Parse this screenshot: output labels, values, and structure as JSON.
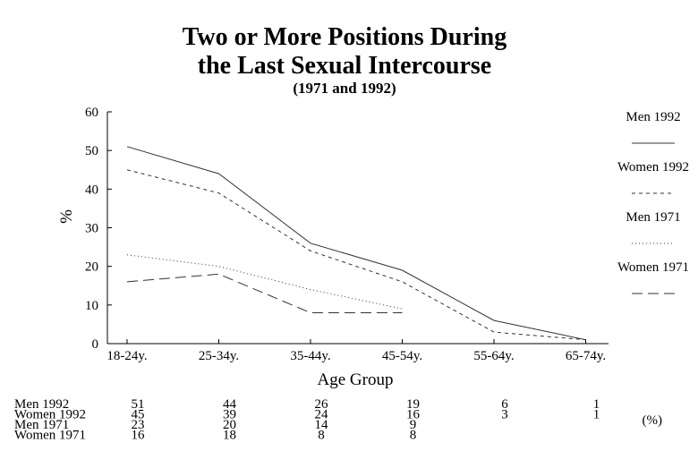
{
  "chart_data": {
    "type": "line",
    "title": "Two or More Positions During the Last Sexual Intercourse",
    "title_lines": [
      "Two or More Positions During",
      "the Last Sexual Intercourse"
    ],
    "subtitle": "(1971 and 1992)",
    "xlabel": "Age Group",
    "ylabel": "%",
    "ylim": [
      0,
      60
    ],
    "yticks": [
      0,
      10,
      20,
      30,
      40,
      50,
      60
    ],
    "categories": [
      "18-24y.",
      "25-34y.",
      "35-44y.",
      "45-54y.",
      "55-64y.",
      "65-74y."
    ],
    "series": [
      {
        "name": "Men 1992",
        "values": [
          51,
          44,
          26,
          19,
          6,
          1
        ],
        "style": "solid"
      },
      {
        "name": "Women 1992",
        "values": [
          45,
          39,
          24,
          16,
          3,
          1
        ],
        "style": "dashed"
      },
      {
        "name": "Men 1971",
        "values": [
          23,
          20,
          14,
          9,
          null,
          null
        ],
        "style": "dotted"
      },
      {
        "name": "Women 1971",
        "values": [
          16,
          18,
          8,
          8,
          null,
          null
        ],
        "style": "longdash"
      }
    ],
    "legend_placement": "right",
    "grid": false,
    "table_unit": "(%)"
  }
}
